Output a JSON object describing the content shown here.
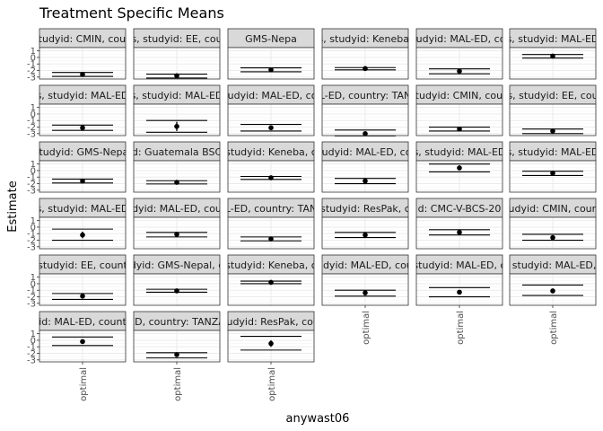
{
  "chart_data": {
    "type": "scatter",
    "title": "Treatment Specific Means",
    "xlabel": "anywast06",
    "ylabel": "Estimate",
    "x_categories": [
      "optimal"
    ],
    "y_ticks": [
      1,
      0,
      -1,
      -2,
      -3
    ],
    "ylim": [
      -3.3,
      1.5
    ],
    "grid": true,
    "facets": [
      {
        "strip": "studyid: CMIN, coun",
        "estimate": -2.6,
        "lower": -2.8,
        "upper": -2.35,
        "ref_low": -2.9,
        "ref_high": -2.3
      },
      {
        "strip": "s, studyid: EE, cou",
        "estimate": -2.8,
        "lower": -3.0,
        "upper": -2.6,
        "ref_low": -3.15,
        "ref_high": -2.55
      },
      {
        "strip": "GMS-Nepa",
        "estimate": -1.9,
        "lower": -2.05,
        "upper": -1.75,
        "ref_low": -2.2,
        "ref_high": -1.6
      },
      {
        "strip": "s, studyid: Keneba,",
        "estimate": -1.7,
        "lower": -1.8,
        "upper": -1.6,
        "ref_low": -1.9,
        "ref_high": -1.55
      },
      {
        "strip": "studyid: MAL-ED, cou",
        "estimate": -2.1,
        "lower": -2.3,
        "upper": -1.95,
        "ref_low": -2.5,
        "ref_high": -1.75
      },
      {
        "strip": "s, studyid: MAL-ED",
        "estimate": 0.2,
        "lower": 0.0,
        "upper": 0.4,
        "ref_low": -0.1,
        "ref_high": 0.45
      },
      {
        "strip": "s, studyid: MAL-ED",
        "estimate": -2.1,
        "lower": -2.3,
        "upper": -1.9,
        "ref_low": -2.5,
        "ref_high": -1.7
      },
      {
        "strip": "s, studyid: MAL-ED",
        "estimate": -1.9,
        "lower": -2.6,
        "upper": -1.2,
        "ref_low": -2.8,
        "ref_high": -1.0
      },
      {
        "strip": "studyid: MAL-ED, cou",
        "estimate": -2.1,
        "lower": -2.4,
        "upper": -1.8,
        "ref_low": -2.6,
        "ref_high": -1.6
      },
      {
        "strip": "L-ED, country: TAN",
        "estimate": -3.0,
        "lower": -3.15,
        "upper": -2.85,
        "ref_low": -3.35,
        "ref_high": -2.45
      },
      {
        "strip": "studyid: CMIN, coun",
        "estimate": -2.3,
        "lower": -2.5,
        "upper": -2.1,
        "ref_low": -2.6,
        "ref_high": -2.0
      },
      {
        "strip": "s, studyid: EE, cou",
        "estimate": -2.6,
        "lower": -2.8,
        "upper": -2.4,
        "ref_low": -3.0,
        "ref_high": -2.3
      },
      {
        "strip": "studyid: GMS-Nepal",
        "estimate": -1.6,
        "lower": -1.75,
        "upper": -1.45,
        "ref_low": -1.9,
        "ref_high": -1.3
      },
      {
        "strip": "d: Guatemala BSC",
        "estimate": -1.8,
        "lower": -1.95,
        "upper": -1.65,
        "ref_low": -2.05,
        "ref_high": -1.55
      },
      {
        "strip": "studyid: Keneba, c",
        "estimate": -1.1,
        "lower": -1.25,
        "upper": -0.95,
        "ref_low": -1.35,
        "ref_high": -0.9
      },
      {
        "strip": "studyid: MAL-ED, cou",
        "estimate": -1.6,
        "lower": -1.8,
        "upper": -1.4,
        "ref_low": -2.0,
        "ref_high": -1.2
      },
      {
        "strip": "s, studyid: MAL-ED",
        "estimate": 0.4,
        "lower": 0.05,
        "upper": 0.8,
        "ref_low": -0.2,
        "ref_high": 1.0
      },
      {
        "strip": "s, studyid: MAL-ED",
        "estimate": -0.4,
        "lower": -0.55,
        "upper": -0.25,
        "ref_low": -0.75,
        "ref_high": -0.1
      },
      {
        "strip": "s, studyid: MAL-ED",
        "estimate": -1.2,
        "lower": -1.7,
        "upper": -0.7,
        "ref_low": -2.0,
        "ref_high": -0.3
      },
      {
        "strip": "dyid: MAL-ED, cou",
        "estimate": -1.1,
        "lower": -1.25,
        "upper": -0.95,
        "ref_low": -1.5,
        "ref_high": -0.8
      },
      {
        "strip": "L-ED, country: TAN",
        "estimate": -1.8,
        "lower": -1.95,
        "upper": -1.65,
        "ref_low": -2.1,
        "ref_high": -1.5
      },
      {
        "strip": "studyid: ResPak, c",
        "estimate": -1.2,
        "lower": -1.35,
        "upper": -1.05,
        "ref_low": -1.6,
        "ref_high": -0.8
      },
      {
        "strip": "d: CMC-V-BCS-20",
        "estimate": -0.8,
        "lower": -0.95,
        "upper": -0.65,
        "ref_low": -1.2,
        "ref_high": -0.4
      },
      {
        "strip": "studyid: CMIN, countr",
        "estimate": -1.6,
        "lower": -1.75,
        "upper": -1.45,
        "ref_low": -2.0,
        "ref_high": -1.1
      },
      {
        "strip": "studyid: EE, count",
        "estimate": -1.9,
        "lower": -2.05,
        "upper": -1.75,
        "ref_low": -2.4,
        "ref_high": -1.5
      },
      {
        "strip": "dyid: GMS-Nepal, c",
        "estimate": -1.1,
        "lower": -1.25,
        "upper": -0.95,
        "ref_low": -1.3,
        "ref_high": -0.85
      },
      {
        "strip": "studyid: Keneba, c",
        "estimate": 0.2,
        "lower": 0.1,
        "upper": 0.3,
        "ref_low": 0.0,
        "ref_high": 0.4
      },
      {
        "strip": "studyid: MAL-ED, count",
        "estimate": -1.4,
        "lower": -1.55,
        "upper": -1.25,
        "ref_low": -1.9,
        "ref_high": -1.0
      },
      {
        "strip": "studyid: MAL-ED, c",
        "estimate": -1.3,
        "lower": -1.6,
        "upper": -1.0,
        "ref_low": -2.0,
        "ref_high": -0.6
      },
      {
        "strip": "s, studyid: MAL-ED, c",
        "estimate": -1.1,
        "lower": -1.4,
        "upper": -0.8,
        "ref_low": -1.8,
        "ref_high": -0.2
      },
      {
        "strip": "id: MAL-ED, count",
        "estimate": -0.2,
        "lower": -0.4,
        "upper": 0.0,
        "ref_low": -0.8,
        "ref_high": 0.5
      },
      {
        "strip": "ED, country: TANZA",
        "estimate": -2.2,
        "lower": -2.35,
        "upper": -2.05,
        "ref_low": -2.7,
        "ref_high": -1.9
      },
      {
        "strip": "tudyid: ResPak, cou",
        "estimate": -0.5,
        "lower": -1.0,
        "upper": 0.0,
        "ref_low": -1.5,
        "ref_high": 0.6
      }
    ]
  },
  "colors": {
    "panel_border": "#333333",
    "strip_fill": "#d9d9d9",
    "grid_major": "#ebebeb",
    "grid_minor": "#f5f5f5",
    "mark": "#000000"
  }
}
